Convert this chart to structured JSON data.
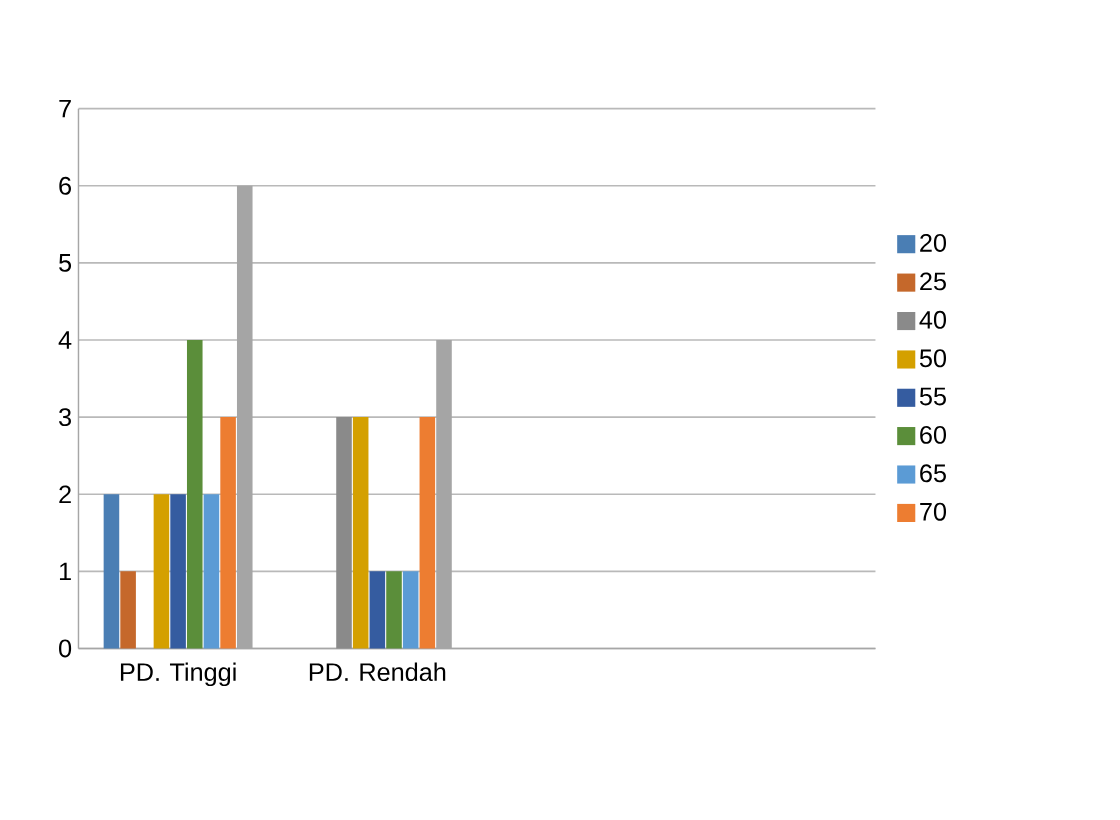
{
  "chart_data": {
    "type": "bar",
    "categories": [
      "PD. Tinggi",
      "PD. Rendah",
      null,
      null
    ],
    "series": [
      {
        "name": "20",
        "color": "#4a7eb4",
        "values": [
          2,
          null,
          null,
          null
        ]
      },
      {
        "name": "25",
        "color": "#c5682b",
        "values": [
          1,
          null,
          null,
          null
        ]
      },
      {
        "name": "40",
        "color": "#8a8a8a",
        "values": [
          null,
          3,
          null,
          null
        ]
      },
      {
        "name": "50",
        "color": "#d4a000",
        "values": [
          2,
          3,
          null,
          null
        ]
      },
      {
        "name": "55",
        "color": "#355ca0",
        "values": [
          2,
          1,
          null,
          null
        ]
      },
      {
        "name": "60",
        "color": "#5b8e3a",
        "values": [
          4,
          1,
          null,
          null
        ]
      },
      {
        "name": "65",
        "color": "#5b9bd5",
        "values": [
          2,
          1,
          null,
          null
        ]
      },
      {
        "name": "70",
        "color": "#ed7d31",
        "values": [
          3,
          3,
          null,
          null
        ]
      },
      {
        "color": "#a5a5a5",
        "values": [
          6,
          4,
          null,
          null
        ]
      }
    ],
    "ylim": [
      0,
      7
    ],
    "yticks": [
      0,
      1,
      2,
      3,
      4,
      5,
      6,
      7
    ],
    "grid": "y",
    "legend": "right"
  }
}
